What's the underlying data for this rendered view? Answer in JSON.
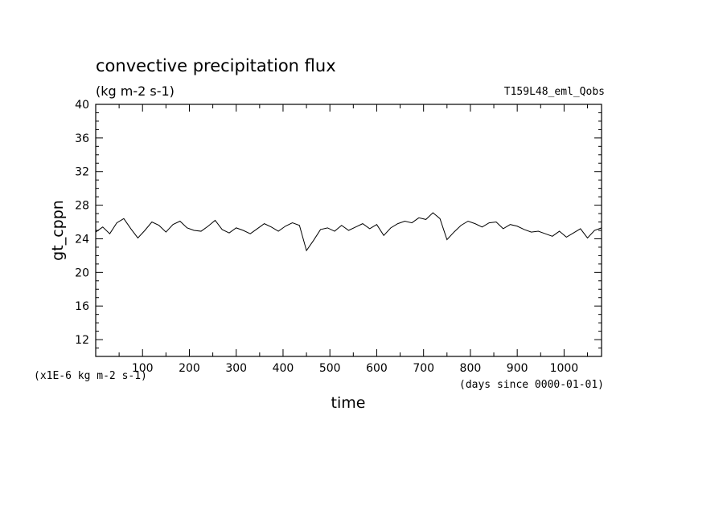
{
  "chart_data": {
    "type": "line",
    "title": "convective precipitation flux",
    "units": "(kg m-2 s-1)",
    "run_label": "T159L48_eml_Qobs",
    "xlabel": "time",
    "ylabel": "gt_cppn",
    "x_units_note": "(days since 0000-01-01)",
    "y_scale_note": "(x1E-6 kg m-2 s-1)",
    "xlim": [
      0,
      1080
    ],
    "ylim": [
      10,
      40
    ],
    "x_major_ticks": [
      100,
      200,
      300,
      400,
      500,
      600,
      700,
      800,
      900,
      1000
    ],
    "y_major_ticks": [
      12,
      16,
      20,
      24,
      28,
      32,
      36,
      40
    ],
    "grid": false,
    "line_color": "#000000",
    "series": [
      {
        "x": [
          0,
          15,
          30,
          45,
          60,
          75,
          90,
          105,
          120,
          135,
          150,
          165,
          180,
          195,
          210,
          225,
          240,
          255,
          270,
          285,
          300,
          315,
          330,
          345,
          360,
          375,
          390,
          405,
          420,
          435,
          450,
          465,
          480,
          495,
          510,
          525,
          540,
          555,
          570,
          585,
          600,
          615,
          630,
          645,
          660,
          675,
          690,
          705,
          720,
          735,
          750,
          765,
          780,
          795,
          810,
          825,
          840,
          855,
          870,
          885,
          900,
          915,
          930,
          945,
          960,
          975,
          990,
          1005,
          1020,
          1035,
          1050,
          1065,
          1080
        ],
        "values": [
          24.8,
          25.4,
          24.6,
          25.9,
          26.4,
          25.2,
          24.1,
          25.0,
          26.0,
          25.6,
          24.8,
          25.7,
          26.1,
          25.3,
          25.0,
          24.9,
          25.5,
          26.2,
          25.1,
          24.7,
          25.3,
          25.0,
          24.6,
          25.2,
          25.8,
          25.4,
          24.9,
          25.5,
          25.9,
          25.6,
          22.6,
          23.8,
          25.1,
          25.3,
          24.9,
          25.6,
          25.0,
          25.4,
          25.8,
          25.2,
          25.7,
          24.4,
          25.3,
          25.8,
          26.1,
          25.9,
          26.5,
          26.3,
          27.1,
          26.4,
          23.9,
          24.8,
          25.6,
          26.1,
          25.8,
          25.4,
          25.9,
          26.0,
          25.2,
          25.7,
          25.5,
          25.1,
          24.8,
          24.9,
          24.6,
          24.3,
          24.9,
          24.2,
          24.7,
          25.2,
          24.1,
          25.0,
          25.3
        ]
      }
    ]
  }
}
